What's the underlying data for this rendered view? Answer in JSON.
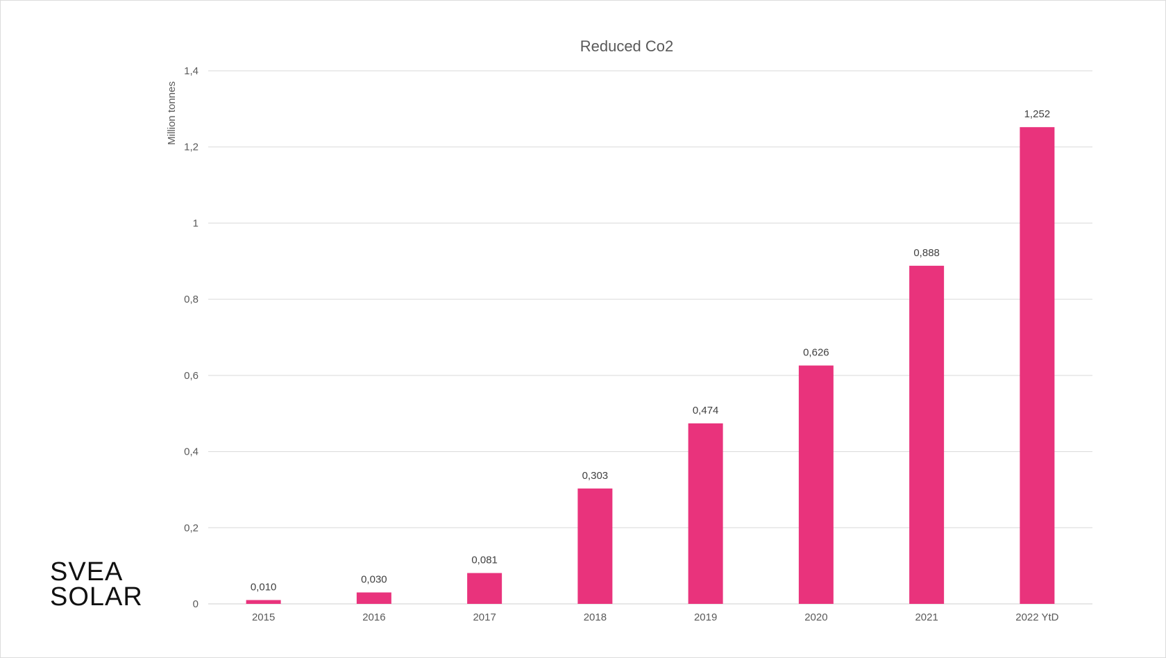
{
  "chart_data": {
    "type": "bar",
    "title": "Reduced Co2",
    "xlabel": "",
    "ylabel": "Million tonnes",
    "categories": [
      "2015",
      "2016",
      "2017",
      "2018",
      "2019",
      "2020",
      "2021",
      "2022 YtD"
    ],
    "values": [
      0.01,
      0.03,
      0.081,
      0.303,
      0.474,
      0.626,
      0.888,
      1.252
    ],
    "data_labels": [
      "0,010",
      "0,030",
      "0,081",
      "0,303",
      "0,474",
      "0,626",
      "0,888",
      "1,252"
    ],
    "ylim": [
      0,
      1.4
    ],
    "y_ticks": [
      0,
      0.2,
      0.4,
      0.6,
      0.8,
      1,
      1.2,
      1.4
    ],
    "y_tick_labels": [
      "0",
      "0,2",
      "0,4",
      "0,6",
      "0,8",
      "1",
      "1,2",
      "1,4"
    ],
    "grid": true,
    "legend": "none",
    "colors": {
      "bar": "#e9337c",
      "grid": "#d9d9d9",
      "text": "#595959",
      "title": "#595959"
    }
  },
  "logo": {
    "line1": "SVEA",
    "line2": "SOLAR"
  }
}
